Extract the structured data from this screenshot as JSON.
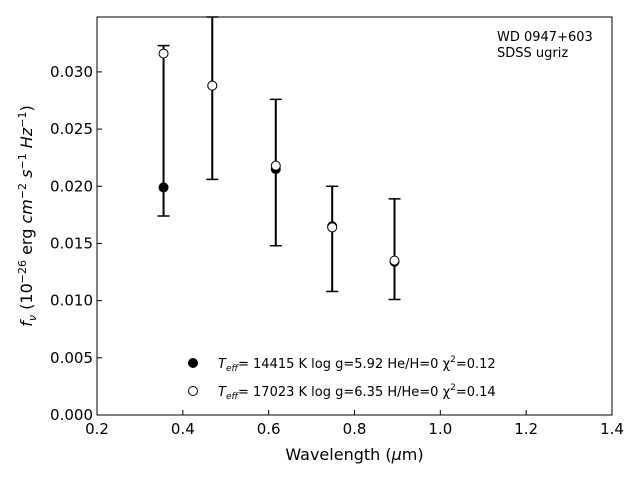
{
  "chart_data": {
    "type": "scatter",
    "title": "",
    "xlabel": "Wavelength (μm)",
    "ylabel": "f_ν (10^-26 erg cm^-2 s^-1 Hz^-1)",
    "xlim": [
      0.2,
      1.4
    ],
    "ylim": [
      0.0,
      0.0348
    ],
    "xticks": [
      "0.2",
      "0.4",
      "0.6",
      "0.8",
      "1.0",
      "1.2",
      "1.4"
    ],
    "yticks": [
      "0.000",
      "0.005",
      "0.010",
      "0.015",
      "0.020",
      "0.025",
      "0.030"
    ],
    "annotation": [
      "WD 0947+603",
      "SDSS ugriz"
    ],
    "observed": [
      {
        "x": 0.3551,
        "y": 0.0317,
        "ylo": 0.0174,
        "yhi": 0.0323
      },
      {
        "x": 0.4686,
        "y": 0.0288,
        "ylo": 0.0206,
        "yhi": 0.0348
      },
      {
        "x": 0.6166,
        "y": 0.0217,
        "ylo": 0.0148,
        "yhi": 0.0276
      },
      {
        "x": 0.748,
        "y": 0.0165,
        "ylo": 0.0108,
        "yhi": 0.02
      },
      {
        "x": 0.8932,
        "y": 0.0134,
        "ylo": 0.0101,
        "yhi": 0.0189
      }
    ],
    "series": [
      {
        "marker": "filled-circle",
        "label": [
          "T",
          "eff",
          "= 14415 K  log g=5.92  He/H=0  χ",
          "2",
          "=0.12"
        ],
        "points": [
          {
            "x": 0.3551,
            "y": 0.0199
          },
          {
            "x": 0.4686,
            "y": 0.0288
          },
          {
            "x": 0.6166,
            "y": 0.0215
          },
          {
            "x": 0.748,
            "y": 0.0165
          },
          {
            "x": 0.8932,
            "y": 0.0134
          }
        ]
      },
      {
        "marker": "open-circle",
        "label": [
          "T",
          "eff",
          "= 17023 K  log g=6.35  H/He=0  χ",
          "2",
          "=0.14"
        ],
        "points": [
          {
            "x": 0.3551,
            "y": 0.0316
          },
          {
            "x": 0.4686,
            "y": 0.0288
          },
          {
            "x": 0.6166,
            "y": 0.0218
          },
          {
            "x": 0.748,
            "y": 0.0164
          },
          {
            "x": 0.8932,
            "y": 0.0135
          }
        ]
      }
    ],
    "legend_position": "bottom-center",
    "grid": false
  }
}
